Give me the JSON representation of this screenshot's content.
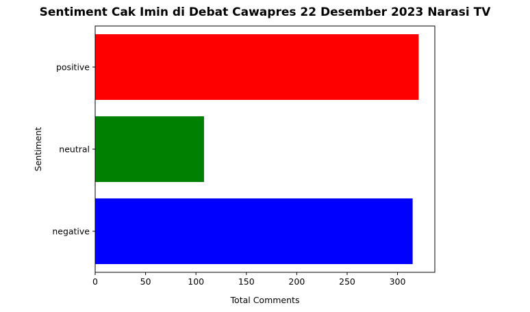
{
  "chart_data": {
    "type": "bar",
    "orientation": "horizontal",
    "title": "Sentiment Cak Imin di Debat Cawapres 22 Desember 2023 Narasi TV",
    "xlabel": "Total Comments",
    "ylabel": "Sentiment",
    "categories": [
      "negative",
      "neutral",
      "positive"
    ],
    "values": [
      315,
      108,
      321
    ],
    "colors": [
      "#0000ff",
      "#008000",
      "#ff0000"
    ],
    "xlim": [
      0,
      337
    ],
    "xticks": [
      0,
      50,
      100,
      150,
      200,
      250,
      300
    ],
    "grid": false,
    "legend": "none"
  }
}
